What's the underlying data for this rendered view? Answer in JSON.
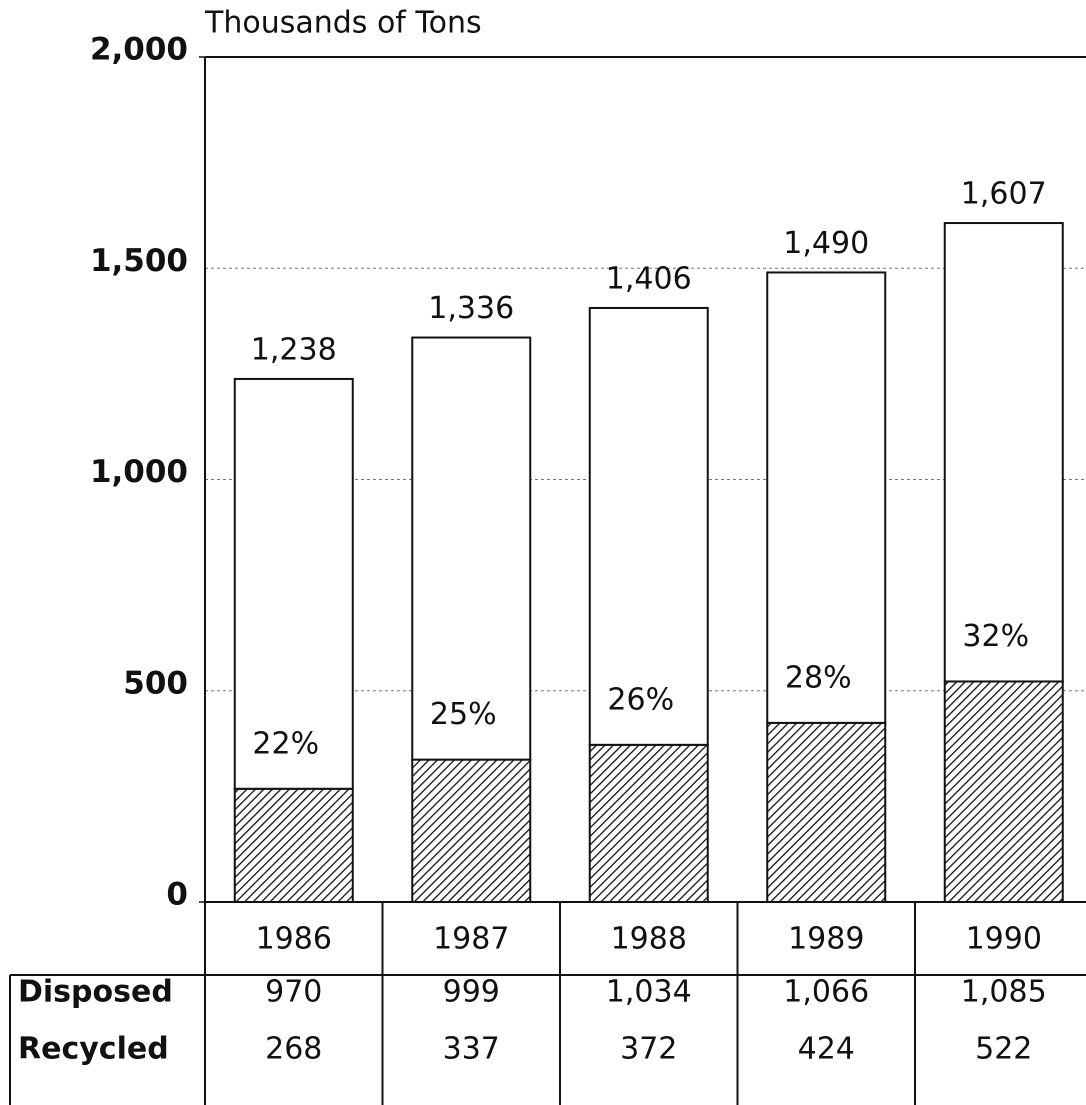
{
  "chart_data": {
    "type": "bar",
    "stacked": true,
    "title": "Thousands of Tons",
    "categories": [
      "1986",
      "1987",
      "1988",
      "1989",
      "1990"
    ],
    "series": [
      {
        "name": "Disposed",
        "color": "#ffffff",
        "values": [
          970,
          999,
          1034,
          1066,
          1085
        ],
        "value_labels": [
          "970",
          "999",
          "1,034",
          "1,066",
          "1,085"
        ]
      },
      {
        "name": "Recycled",
        "color": "#000000",
        "hatch": true,
        "values": [
          268,
          337,
          372,
          424,
          522
        ],
        "value_labels": [
          "268",
          "337",
          "372",
          "424",
          "522"
        ]
      }
    ],
    "totals": {
      "values": [
        1238,
        1336,
        1406,
        1490,
        1607
      ],
      "value_labels": [
        "1,238",
        "1,336",
        "1,406",
        "1,490",
        "1,607"
      ]
    },
    "recycled_share": {
      "values": [
        22,
        25,
        26,
        28,
        32
      ],
      "value_labels": [
        "22%",
        "25%",
        "26%",
        "28%",
        "32%"
      ]
    },
    "ylim": [
      0,
      2000
    ],
    "yticks": [
      0,
      500,
      {
        "value": 1000,
        "label": "1,000"
      },
      {
        "value": 1500,
        "label": "1,500"
      },
      {
        "value": 2000,
        "label": "2,000"
      }
    ],
    "grid": true
  }
}
